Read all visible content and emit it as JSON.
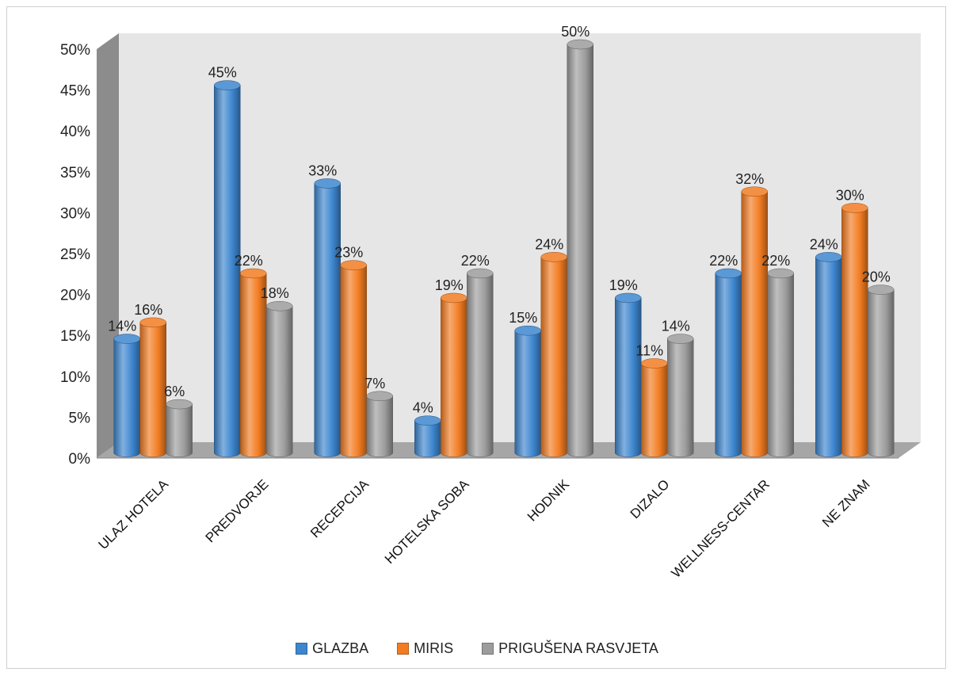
{
  "chart_data": {
    "type": "bar",
    "categories": [
      "ULAZ HOTELA",
      "PREDVORJE",
      "RECEPCIJA",
      "HOTELSKA SOBA",
      "HODNIK",
      "DIZALO",
      "WELLNESS-CENTAR",
      "NE ZNAM"
    ],
    "series": [
      {
        "name": "GLAZBA",
        "values": [
          14,
          45,
          33,
          4,
          15,
          19,
          22,
          24
        ],
        "color": "#3d86cf"
      },
      {
        "name": "MIRIS",
        "values": [
          16,
          22,
          23,
          19,
          24,
          11,
          32,
          30
        ],
        "color": "#f27c22"
      },
      {
        "name": "PRIGUŠENA RASVJETA",
        "values": [
          6,
          18,
          7,
          22,
          50,
          14,
          22,
          20
        ],
        "color": "#9c9c9c"
      }
    ],
    "ylim": [
      0,
      50
    ],
    "yticks": [
      "0%",
      "5%",
      "10%",
      "15%",
      "20%",
      "25%",
      "30%",
      "35%",
      "40%",
      "45%",
      "50%"
    ],
    "value_suffix": "%",
    "grid": false,
    "legend_position": "bottom",
    "style": "3d-cylinder"
  }
}
